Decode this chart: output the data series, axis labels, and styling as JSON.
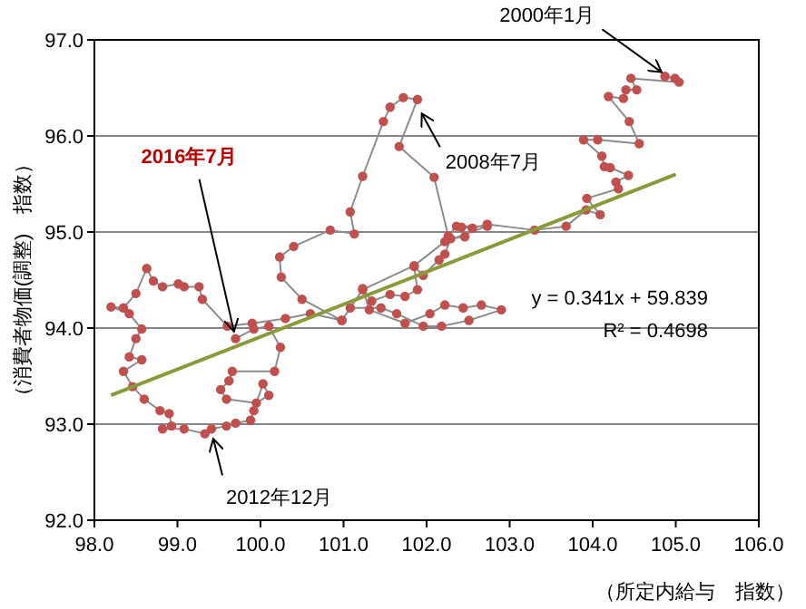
{
  "chart_data": {
    "type": "line",
    "xlabel": "（所定内給与　指数）",
    "ylabel": "（消費者物価(調整)　指数）",
    "xlim": [
      98,
      106
    ],
    "ylim": [
      92,
      97
    ],
    "xticks": [
      {
        "value": 98,
        "label": "98.0"
      },
      {
        "value": 99,
        "label": "99.0"
      },
      {
        "value": 100,
        "label": "100.0"
      },
      {
        "value": 101,
        "label": "101.0"
      },
      {
        "value": 102,
        "label": "102.0"
      },
      {
        "value": 103,
        "label": "103.0"
      },
      {
        "value": 104,
        "label": "104.0"
      },
      {
        "value": 105,
        "label": "105.0"
      },
      {
        "value": 106,
        "label": "106.0"
      }
    ],
    "yticks": [
      {
        "value": 92,
        "label": "92.0"
      },
      {
        "value": 93,
        "label": "93.0"
      },
      {
        "value": 94,
        "label": "94.0"
      },
      {
        "value": 95,
        "label": "95.0"
      },
      {
        "value": 96,
        "label": "96.0"
      },
      {
        "value": 97,
        "label": "97.0"
      }
    ],
    "grid": "y",
    "marker": "circle",
    "line_style": "solid",
    "series": [
      {
        "color": "#c0504d",
        "x": [
          104.87,
          104.99,
          105.04,
          104.46,
          104.53,
          104.4,
          104.37,
          104.19,
          104.44,
          104.56,
          104.06,
          103.89,
          104.11,
          104.14,
          104.21,
          104.43,
          104.28,
          104.31,
          103.93,
          104.09,
          103.92,
          103.68,
          103.3,
          102.73,
          102.55,
          102.42,
          102.46,
          102.29,
          102.22,
          102.15,
          101.96,
          101.85,
          101.89,
          101.74,
          101.56,
          101.34,
          101.23,
          101.31,
          101.74,
          102.04,
          102.22,
          102.44,
          102.66,
          102.9,
          102.51,
          102.18,
          101.96,
          101.64,
          101.45,
          101.08,
          100.98,
          100.5,
          100.25,
          100.23,
          100.4,
          100.84,
          101.13,
          101.08,
          101.23,
          101.48,
          101.56,
          101.72,
          101.89,
          101.67,
          102.09,
          102.26,
          102.36,
          102.73,
          102.22,
          101.85,
          101.23,
          100.98,
          100.6,
          100.3,
          99.9,
          99.6,
          99.3,
          99.26,
          99.08,
          99.01,
          98.82,
          98.71,
          98.63,
          98.5,
          98.35,
          98.2,
          98.42,
          98.57,
          98.5,
          98.42,
          98.57,
          98.35,
          98.46,
          98.6,
          98.79,
          98.9,
          98.93,
          98.82,
          99.08,
          99.33,
          99.41,
          99.59,
          99.7,
          99.88,
          99.92,
          100.03,
          100.1,
          99.95,
          99.59,
          99.52,
          99.62,
          99.66,
          100.17,
          100.24,
          100.1,
          99.92,
          99.7
        ],
        "values": [
          96.62,
          96.6,
          96.56,
          96.6,
          96.48,
          96.48,
          96.39,
          96.41,
          96.15,
          95.92,
          95.96,
          95.96,
          95.79,
          95.68,
          95.67,
          95.59,
          95.52,
          95.45,
          95.35,
          95.18,
          95.23,
          95.06,
          95.02,
          95.08,
          95.04,
          95.05,
          94.95,
          94.93,
          94.77,
          94.71,
          94.55,
          94.64,
          94.4,
          94.33,
          94.35,
          94.28,
          94.41,
          94.19,
          94.05,
          94.15,
          94.24,
          94.21,
          94.24,
          94.19,
          94.08,
          94.02,
          94.02,
          94.15,
          94.21,
          94.21,
          94.08,
          94.3,
          94.53,
          94.74,
          94.85,
          95.02,
          94.98,
          95.21,
          95.58,
          96.15,
          96.3,
          96.4,
          96.38,
          95.89,
          95.57,
          94.96,
          95.06,
          95.06,
          94.9,
          94.65,
          94.4,
          94.08,
          94.15,
          94.1,
          94.05,
          94.02,
          94.3,
          94.43,
          94.43,
          94.46,
          94.43,
          94.49,
          94.62,
          94.36,
          94.21,
          94.22,
          94.15,
          93.99,
          93.89,
          93.7,
          93.67,
          93.55,
          93.39,
          93.26,
          93.14,
          93.11,
          92.98,
          92.95,
          92.95,
          92.9,
          92.95,
          92.98,
          93.01,
          93.04,
          93.14,
          93.42,
          93.3,
          93.22,
          93.26,
          93.36,
          93.45,
          93.55,
          93.55,
          93.8,
          94.02,
          93.99,
          93.89
        ]
      },
      {
        "type": "line",
        "marker": "none",
        "color": "#8a9a3b",
        "x": [
          98.2,
          105.0
        ],
        "values": [
          93.3,
          95.6
        ]
      }
    ],
    "annotations": [
      {
        "text": "2000年1月",
        "x": 104.9,
        "y": 96.62
      },
      {
        "text": "2008年7月",
        "x": 101.9,
        "y": 96.3
      },
      {
        "text": "2016年7月",
        "x": 99.7,
        "y": 93.89
      },
      {
        "text": "2012年12月",
        "x": 99.41,
        "y": 92.92
      },
      "y = 0.341x + 59.839",
      "R² = 0.4698"
    ]
  }
}
